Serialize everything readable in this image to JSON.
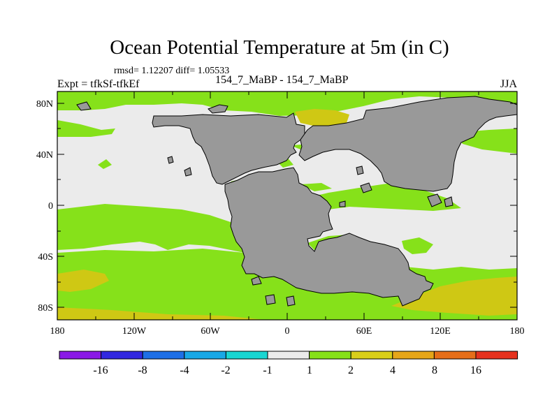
{
  "title": "Ocean Potential Temperature at 5m (in C)",
  "stats": "rmsd= 1.12207 diff= 1.05533",
  "left_label": "Expt = tfkSf-tfkEf",
  "center_label": "154_7_MaBP - 154_7_MaBP",
  "right_label": "JJA",
  "lat_labels": [
    "80N",
    "40N",
    "0",
    "40S",
    "80S"
  ],
  "lon_labels": [
    "180",
    "120W",
    "60W",
    "0",
    "60E",
    "120E",
    "180"
  ],
  "colorbar": {
    "colors": [
      "#8a19e6",
      "#3228e0",
      "#1e6fe6",
      "#19a8e6",
      "#19d6d2",
      "#ebebeb",
      "#86e11a",
      "#d9cf1a",
      "#e6a619",
      "#e66e19",
      "#e6321e"
    ],
    "labels": [
      "-16",
      "-8",
      "-4",
      "-2",
      "-1",
      "1",
      "2",
      "4",
      "8",
      "16"
    ]
  },
  "colors": {
    "land": "#999999",
    "near_zero": "#ebebeb",
    "warm_1_2": "#86e11a",
    "warm_2_4": "#cfc814"
  },
  "regions": {
    "land": "Continental landmass (Pangaea)",
    "near_zero": "Difference -1 to 1",
    "warm_1_2": "Difference 1 to 2",
    "warm_2_4": "Difference 2 to 4"
  }
}
